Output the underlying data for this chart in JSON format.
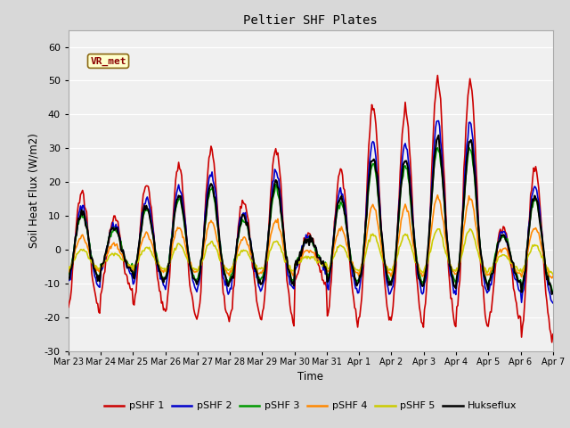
{
  "title": "Peltier SHF Plates",
  "xlabel": "Time",
  "ylabel": "Soil Heat Flux (W/m2)",
  "ylim": [
    -30,
    65
  ],
  "yticks": [
    -30,
    -20,
    -10,
    0,
    10,
    20,
    30,
    40,
    50,
    60
  ],
  "x_labels": [
    "Mar 23",
    "Mar 24",
    "Mar 25",
    "Mar 26",
    "Mar 27",
    "Mar 28",
    "Mar 29",
    "Mar 30",
    "Mar 31",
    "Apr 1",
    "Apr 2",
    "Apr 3",
    "Apr 4",
    "Apr 5",
    "Apr 6",
    "Apr 7"
  ],
  "annotation_text": "VR_met",
  "series_colors": [
    "#cc0000",
    "#0000cc",
    "#009900",
    "#ff8800",
    "#cccc00",
    "#000000"
  ],
  "series_labels": [
    "pSHF 1",
    "pSHF 2",
    "pSHF 3",
    "pSHF 4",
    "pSHF 5",
    "Hukseflux"
  ],
  "series_linewidths": [
    1.2,
    1.2,
    1.2,
    1.2,
    1.2,
    1.5
  ],
  "fig_bg_color": "#d8d8d8",
  "plot_bg_color": "#f0f0f0",
  "n_points": 480,
  "days": 15,
  "day_peaks_shf1": [
    17,
    10,
    20,
    25,
    30,
    15,
    31,
    5,
    24,
    43,
    42,
    51,
    50,
    7,
    25
  ],
  "day_troughs_shf1": [
    -18,
    -12,
    -18,
    -20,
    -21,
    -20,
    -21,
    -10,
    -21,
    -22,
    -22,
    -22,
    -22,
    -20,
    -26
  ]
}
